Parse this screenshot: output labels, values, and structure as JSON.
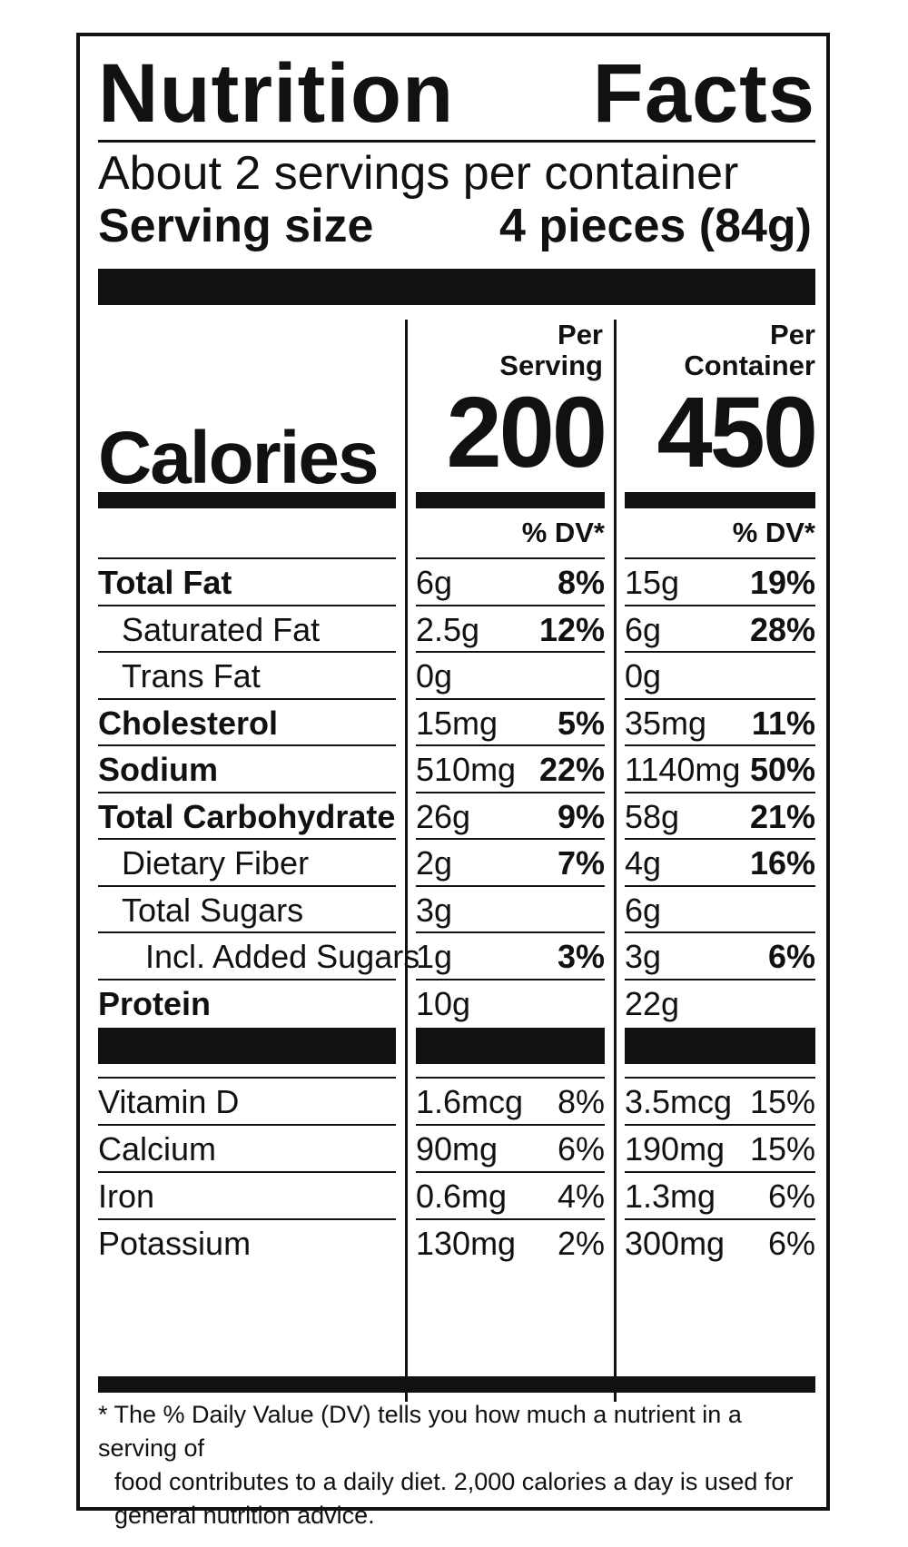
{
  "label": {
    "title_left": "Nutrition",
    "title_right": "Facts",
    "servings_per_container": "About 2 servings per container",
    "serving_size_label": "Serving size",
    "serving_size_value": "4 pieces (84g)",
    "col1_header_line1": "Per",
    "col1_header_line2": "Serving",
    "col2_header_line1": "Per",
    "col2_header_line2": "Container",
    "calories_label": "Calories",
    "calories_per_serving": "200",
    "calories_per_container": "450",
    "dv_header": "% DV*"
  },
  "nutrients": [
    {
      "label": "Total Fat",
      "bold": true,
      "indent": 0,
      "serving_amount": "6g",
      "serving_dv": "8%",
      "container_amount": "15g",
      "container_dv": "19%"
    },
    {
      "label": "Saturated Fat",
      "bold": false,
      "indent": 1,
      "serving_amount": "2.5g",
      "serving_dv": "12%",
      "container_amount": "6g",
      "container_dv": "28%"
    },
    {
      "label": "Trans Fat",
      "bold": false,
      "indent": 1,
      "serving_amount": "0g",
      "serving_dv": "",
      "container_amount": "0g",
      "container_dv": ""
    },
    {
      "label": "Cholesterol",
      "bold": true,
      "indent": 0,
      "serving_amount": "15mg",
      "serving_dv": "5%",
      "container_amount": "35mg",
      "container_dv": "11%"
    },
    {
      "label": "Sodium",
      "bold": true,
      "indent": 0,
      "serving_amount": "510mg",
      "serving_dv": "22%",
      "container_amount": "1140mg",
      "container_dv": "50%"
    },
    {
      "label": "Total Carbohydrate",
      "bold": true,
      "indent": 0,
      "serving_amount": "26g",
      "serving_dv": "9%",
      "container_amount": "58g",
      "container_dv": "21%"
    },
    {
      "label": "Dietary Fiber",
      "bold": false,
      "indent": 1,
      "serving_amount": "2g",
      "serving_dv": "7%",
      "container_amount": "4g",
      "container_dv": "16%"
    },
    {
      "label": "Total Sugars",
      "bold": false,
      "indent": 1,
      "serving_amount": "3g",
      "serving_dv": "",
      "container_amount": "6g",
      "container_dv": ""
    },
    {
      "label": "Incl. Added Sugars",
      "bold": false,
      "indent": 2,
      "serving_amount": "1g",
      "serving_dv": "3%",
      "container_amount": "3g",
      "container_dv": "6%"
    },
    {
      "label": "Protein",
      "bold": true,
      "indent": 0,
      "serving_amount": "10g",
      "serving_dv": "",
      "container_amount": "22g",
      "container_dv": ""
    }
  ],
  "vitamins": [
    {
      "label": "Vitamin D",
      "serving_amount": "1.6mcg",
      "serving_dv": "8%",
      "container_amount": "3.5mcg",
      "container_dv": "15%"
    },
    {
      "label": "Calcium",
      "serving_amount": "90mg",
      "serving_dv": "6%",
      "container_amount": "190mg",
      "container_dv": "15%"
    },
    {
      "label": "Iron",
      "serving_amount": "0.6mg",
      "serving_dv": "4%",
      "container_amount": "1.3mg",
      "container_dv": "6%"
    },
    {
      "label": "Potassium",
      "serving_amount": "130mg",
      "serving_dv": "2%",
      "container_amount": "300mg",
      "container_dv": "6%"
    }
  ],
  "footnote": {
    "line1": "* The % Daily Value (DV) tells you how much a nutrient in a serving of",
    "line2": "food contributes to a daily diet. 2,000 calories a day is used for",
    "line3": "general nutrition advice."
  },
  "colors": {
    "ink": "#111111",
    "background": "#ffffff"
  }
}
